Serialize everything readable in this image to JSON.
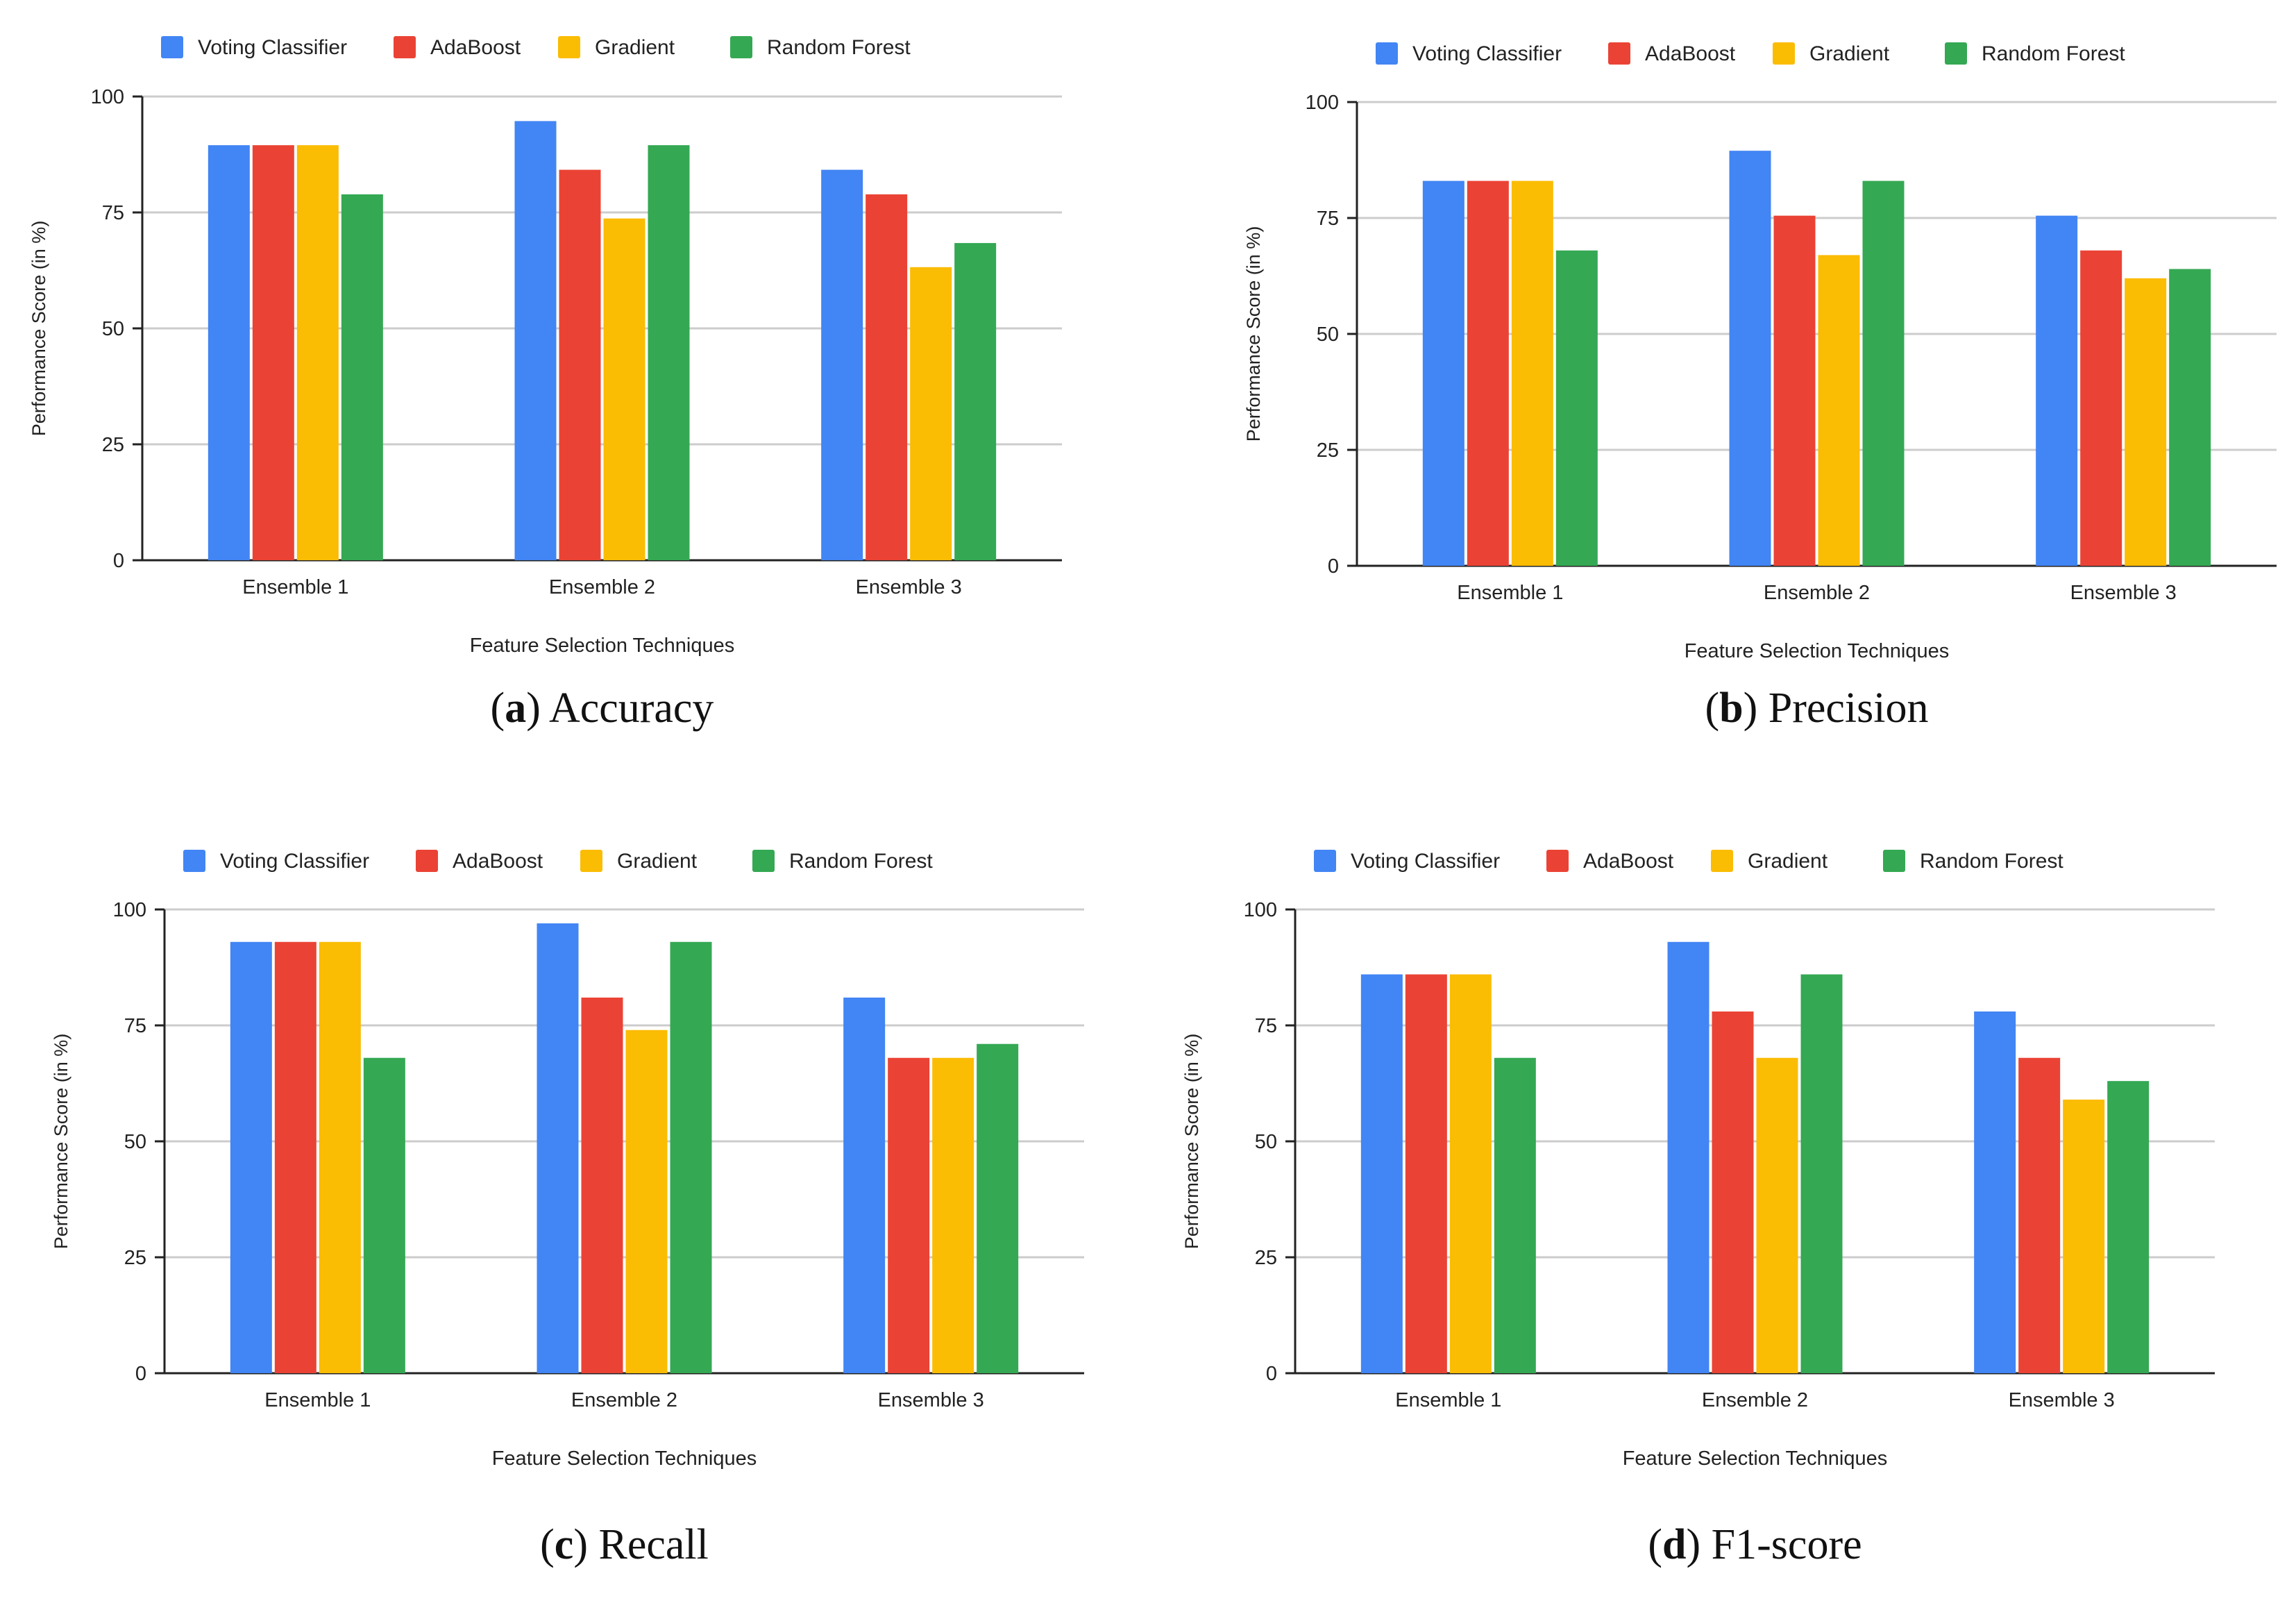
{
  "colors": {
    "Voting Classifier": "#4285F4",
    "AdaBoost": "#EA4335",
    "Gradient": "#FBBC04",
    "Random Forest": "#34A853",
    "gridline": "#cccccc",
    "axis": "#222222"
  },
  "chart_data": [
    {
      "type": "bar",
      "panel_letter": "a",
      "caption_text": "Accuracy",
      "categories": [
        "Ensemble 1",
        "Ensemble 2",
        "Ensemble 3"
      ],
      "series": [
        {
          "name": "Voting Classifier",
          "values": [
            89.5,
            94.7,
            84.2
          ]
        },
        {
          "name": "AdaBoost",
          "values": [
            89.5,
            84.2,
            78.9
          ]
        },
        {
          "name": "Gradient",
          "values": [
            89.5,
            73.7,
            63.2
          ]
        },
        {
          "name": "Random Forest",
          "values": [
            78.9,
            89.5,
            68.4
          ]
        }
      ],
      "xlabel": "Feature Selection Techniques",
      "ylabel": "Performance Score (in %)",
      "yticks": [
        0,
        25,
        50,
        75,
        100
      ],
      "ylim": [
        0,
        100
      ],
      "grid": true,
      "legend_position": "top"
    },
    {
      "type": "bar",
      "panel_letter": "b",
      "caption_text": "Precision",
      "categories": [
        "Ensemble 1",
        "Ensemble 2",
        "Ensemble 3"
      ],
      "series": [
        {
          "name": "Voting Classifier",
          "values": [
            83,
            89.5,
            75.5
          ]
        },
        {
          "name": "AdaBoost",
          "values": [
            83,
            75.5,
            68
          ]
        },
        {
          "name": "Gradient",
          "values": [
            83,
            67,
            62
          ]
        },
        {
          "name": "Random Forest",
          "values": [
            68,
            83,
            64
          ]
        }
      ],
      "xlabel": "Feature Selection Techniques",
      "ylabel": "Performance Score (in %)",
      "yticks": [
        0,
        25,
        50,
        75,
        100
      ],
      "ylim": [
        0,
        100
      ],
      "grid": true,
      "legend_position": "top"
    },
    {
      "type": "bar",
      "panel_letter": "c",
      "caption_text": "Recall",
      "categories": [
        "Ensemble 1",
        "Ensemble 2",
        "Ensemble 3"
      ],
      "series": [
        {
          "name": "Voting Classifier",
          "values": [
            93,
            97,
            81
          ]
        },
        {
          "name": "AdaBoost",
          "values": [
            93,
            81,
            68
          ]
        },
        {
          "name": "Gradient",
          "values": [
            93,
            74,
            68
          ]
        },
        {
          "name": "Random Forest",
          "values": [
            68,
            93,
            71
          ]
        }
      ],
      "xlabel": "Feature Selection Techniques",
      "ylabel": "Performance Score (in %)",
      "yticks": [
        0,
        25,
        50,
        75,
        100
      ],
      "ylim": [
        0,
        100
      ],
      "grid": true,
      "legend_position": "top"
    },
    {
      "type": "bar",
      "panel_letter": "d",
      "caption_text": "F1-score",
      "categories": [
        "Ensemble 1",
        "Ensemble 2",
        "Ensemble 3"
      ],
      "series": [
        {
          "name": "Voting Classifier",
          "values": [
            86,
            93,
            78
          ]
        },
        {
          "name": "AdaBoost",
          "values": [
            86,
            78,
            68
          ]
        },
        {
          "name": "Gradient",
          "values": [
            86,
            68,
            59
          ]
        },
        {
          "name": "Random Forest",
          "values": [
            68,
            86,
            63
          ]
        }
      ],
      "xlabel": "Feature Selection Techniques",
      "ylabel": "Performance Score (in %)",
      "yticks": [
        0,
        25,
        50,
        75,
        100
      ],
      "ylim": [
        0,
        100
      ],
      "grid": true,
      "legend_position": "top"
    }
  ]
}
